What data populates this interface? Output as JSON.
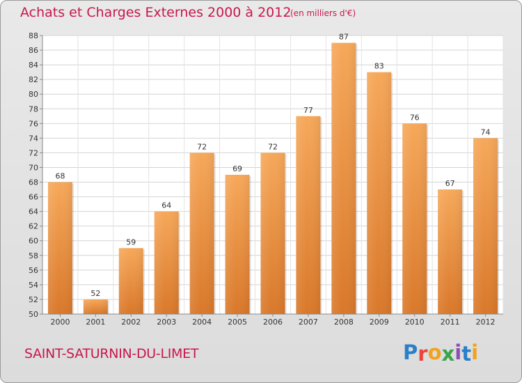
{
  "header": {
    "title": "Achats et Charges Externes 2000 à 2012",
    "subtitle": "(en milliers d'€)"
  },
  "footer": {
    "commune": "SAINT-SATURNIN-DU-LIMET",
    "logo": "Proxiti"
  },
  "colors": {
    "accent": "#c8174b",
    "bar_top": "#f6a85a",
    "bar_bottom": "#d9782a"
  },
  "chart_data": {
    "type": "bar",
    "categories": [
      "2000",
      "2001",
      "2002",
      "2003",
      "2004",
      "2005",
      "2006",
      "2007",
      "2008",
      "2009",
      "2010",
      "2011",
      "2012"
    ],
    "values": [
      68,
      52,
      59,
      64,
      72,
      69,
      72,
      77,
      87,
      83,
      76,
      67,
      74
    ],
    "title": "Achats et Charges Externes 2000 à 2012",
    "xlabel": "",
    "ylabel": "",
    "ylim": [
      50,
      88
    ],
    "yticks": [
      50,
      52,
      54,
      56,
      58,
      60,
      62,
      64,
      66,
      68,
      70,
      72,
      74,
      76,
      78,
      80,
      82,
      84,
      86,
      88
    ],
    "grid": true,
    "legend": "none"
  }
}
